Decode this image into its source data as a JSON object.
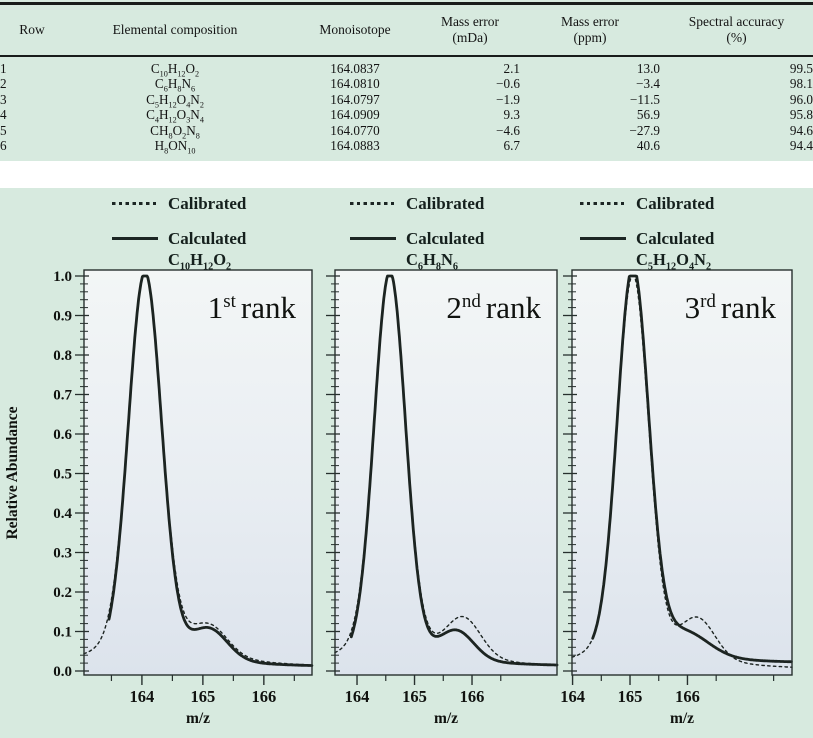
{
  "colors": {
    "section_bg": "#d7eadf",
    "ink": "#1c2421",
    "plot_bg_top": "#f3f6f6",
    "plot_bg_mid": "#e8edf2",
    "plot_bg_bottom": "#dce3ec"
  },
  "table": {
    "headers": [
      {
        "line1": "Row",
        "line2": ""
      },
      {
        "line1": "Elemental composition",
        "line2": ""
      },
      {
        "line1": "Monoisotope",
        "line2": ""
      },
      {
        "line1": "Mass error",
        "line2": "(mDa)"
      },
      {
        "line1": "Mass error",
        "line2": "(ppm)"
      },
      {
        "line1": "Spectral accuracy",
        "line2": "(%)"
      }
    ],
    "rows": [
      {
        "row": "1",
        "formula": "C10H12O2",
        "monoisotope": "164.0837",
        "mass_error_mda": "2.1",
        "mass_error_ppm": "13.0",
        "spectral_accuracy": "99.5"
      },
      {
        "row": "2",
        "formula": "C6H8N6",
        "monoisotope": "164.0810",
        "mass_error_mda": "−0.6",
        "mass_error_ppm": "−3.4",
        "spectral_accuracy": "98.1"
      },
      {
        "row": "3",
        "formula": "C5H12O4N2",
        "monoisotope": "164.0797",
        "mass_error_mda": "−1.9",
        "mass_error_ppm": "−11.5",
        "spectral_accuracy": "96.0"
      },
      {
        "row": "4",
        "formula": "C4H12O3N4",
        "monoisotope": "164.0909",
        "mass_error_mda": "9.3",
        "mass_error_ppm": "56.9",
        "spectral_accuracy": "95.8"
      },
      {
        "row": "5",
        "formula": "CH8O2N8",
        "monoisotope": "164.0770",
        "mass_error_mda": "−4.6",
        "mass_error_ppm": "−27.9",
        "spectral_accuracy": "94.6"
      },
      {
        "row": "6",
        "formula": "H8ON10",
        "monoisotope": "164.0883",
        "mass_error_mda": "6.7",
        "mass_error_ppm": "40.6",
        "spectral_accuracy": "94.4"
      }
    ]
  },
  "chart_data": [
    {
      "type": "line",
      "rank": {
        "num": "1",
        "sup": "st",
        "word": "rank"
      },
      "formula": "C10H12O2",
      "legend": [
        "Calibrated",
        "Calculated"
      ],
      "xlabel": "m/z",
      "ylabel": "Relative Abundance",
      "xlim": [
        163.05,
        166.79
      ],
      "ylim": [
        0.0,
        1.0
      ],
      "x_ticks": [
        164,
        165,
        166
      ],
      "x_minor_step": 0.5,
      "y_tick_step": 0.1,
      "y_minor_step": 0.02,
      "y_tick_labels": [
        "0.0",
        "0.1",
        "0.2",
        "0.3",
        "0.4",
        "0.5",
        "0.6",
        "0.7",
        "0.8",
        "0.9",
        "1.0"
      ],
      "series": [
        {
          "name": "Calibrated",
          "style": "dotted",
          "baseline": 0.006,
          "eta": 0.08,
          "gamma": 0.9,
          "peaks": [
            {
              "mz": 164.05,
              "h": 1.0,
              "sigma": 0.27
            },
            {
              "mz": 165.1,
              "h": 0.08,
              "sigma": 0.3
            }
          ]
        },
        {
          "name": "Calculated",
          "style": "solid",
          "x_start": 163.46,
          "baseline": 0.008,
          "eta": 0.05,
          "gamma": 0.9,
          "peaks": [
            {
              "mz": 164.05,
              "h": 1.0,
              "sigma": 0.27
            },
            {
              "mz": 165.1,
              "h": 0.08,
              "sigma": 0.3
            }
          ]
        }
      ]
    },
    {
      "type": "line",
      "rank": {
        "num": "2",
        "sup": "nd",
        "word": "rank"
      },
      "formula": "C6H8N6",
      "legend": [
        "Calibrated",
        "Calculated"
      ],
      "xlabel": "m/z",
      "xlim": [
        163.617,
        167.478
      ],
      "ylim": [
        0.0,
        1.0
      ],
      "x_ticks": [
        164,
        165,
        166
      ],
      "x_minor_step": 0.5,
      "y_tick_step": 0.1,
      "y_minor_step": 0.02,
      "series": [
        {
          "name": "Calibrated",
          "style": "dotted",
          "baseline": 0.006,
          "eta": 0.08,
          "gamma": 0.9,
          "peaks": [
            {
              "mz": 164.57,
              "h": 1.0,
              "sigma": 0.27
            },
            {
              "mz": 165.85,
              "h": 0.105,
              "sigma": 0.3
            }
          ]
        },
        {
          "name": "Calculated",
          "style": "solid",
          "x_start": 163.9,
          "baseline": 0.01,
          "eta": 0.05,
          "gamma": 0.9,
          "peaks": [
            {
              "mz": 164.57,
              "h": 1.0,
              "sigma": 0.27
            },
            {
              "mz": 165.73,
              "h": 0.075,
              "sigma": 0.3
            }
          ]
        }
      ]
    },
    {
      "type": "line",
      "rank": {
        "num": "3",
        "sup": "rd",
        "word": "rank"
      },
      "formula": "C5H12O4N2",
      "legend": [
        "Calibrated",
        "Calculated"
      ],
      "xlabel": "m/z",
      "xlim": [
        163.99,
        167.82
      ],
      "ylim": [
        0.0,
        1.0
      ],
      "x_ticks": [
        164,
        165,
        166
      ],
      "x_minor_step": 0.5,
      "y_tick_step": 0.1,
      "y_minor_step": 0.02,
      "series": [
        {
          "name": "Calibrated",
          "style": "dotted",
          "baseline": 0.0,
          "eta": 0.08,
          "gamma": 0.9,
          "peaks": [
            {
              "mz": 165.05,
              "h": 1.0,
              "sigma": 0.27
            },
            {
              "mz": 166.18,
              "h": 0.105,
              "sigma": 0.3
            }
          ]
        },
        {
          "name": "Calculated",
          "style": "solid",
          "x_start": 164.35,
          "baseline": 0.018,
          "eta": 0.05,
          "gamma": 0.9,
          "peaks": [
            {
              "mz": 165.05,
              "h": 1.0,
              "sigma": 0.27
            },
            {
              "mz": 165.95,
              "h": 0.06,
              "sigma": 0.42
            }
          ]
        }
      ]
    }
  ]
}
